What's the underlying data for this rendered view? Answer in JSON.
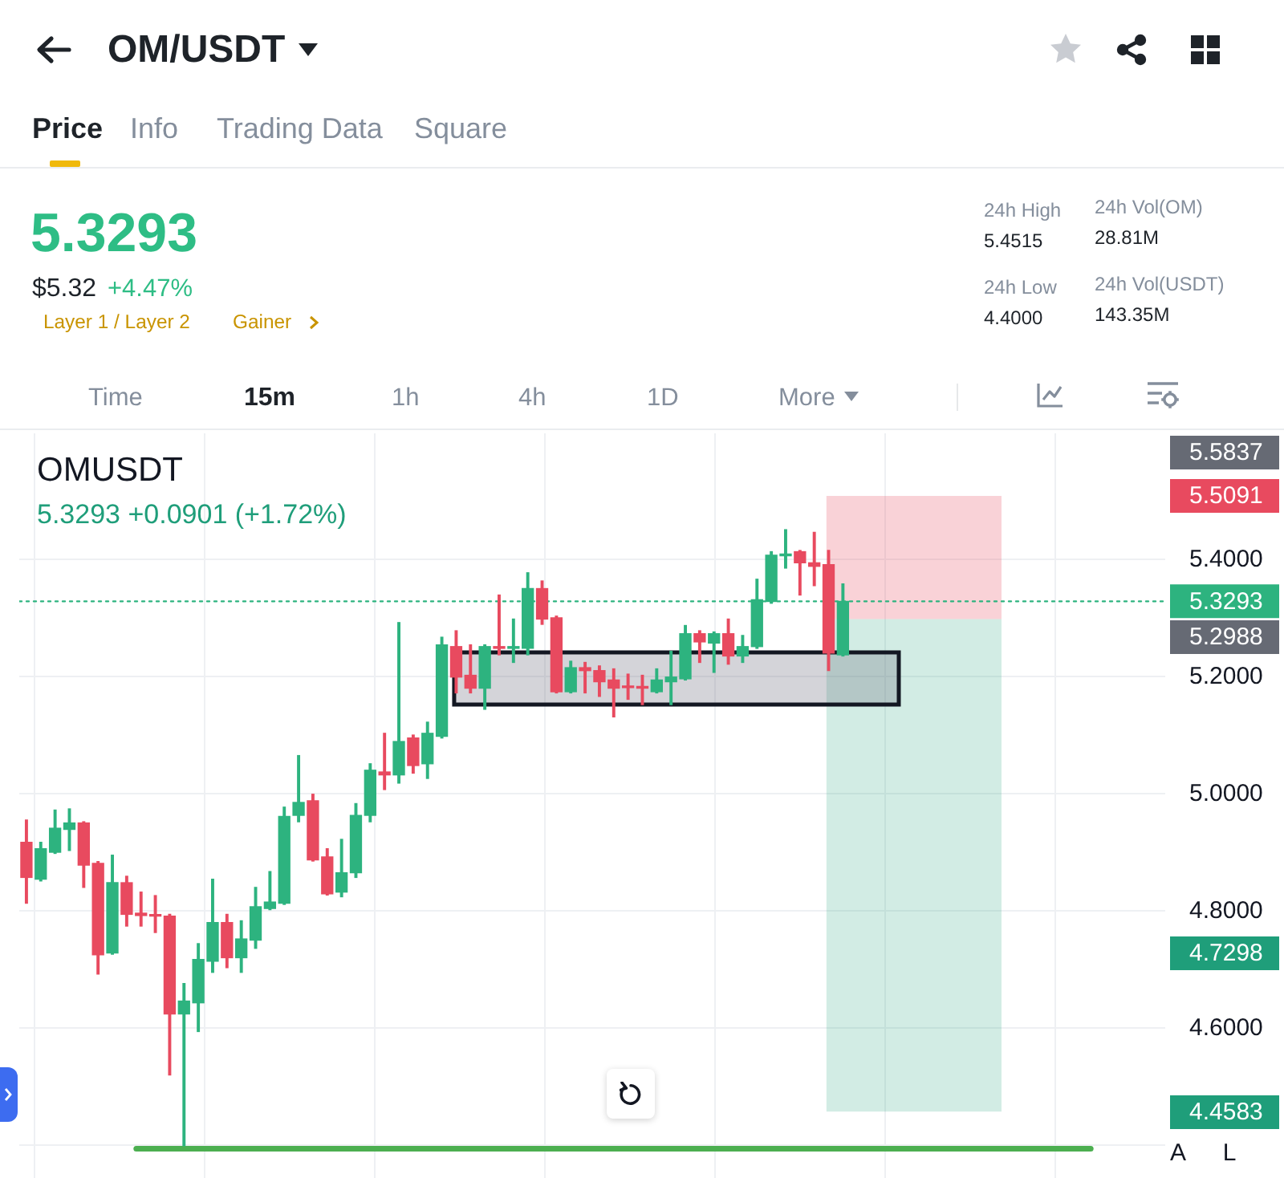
{
  "chart_data": {
    "type": "candlestick",
    "title": "OM/USDT",
    "categories": [
      null,
      null,
      null,
      null,
      null,
      null,
      null,
      null,
      null,
      null,
      null,
      null,
      null,
      null,
      null,
      null,
      null,
      null,
      null,
      null,
      null,
      null,
      null,
      null,
      null,
      null,
      null,
      null,
      null,
      null,
      null,
      null,
      null,
      null,
      null,
      null,
      null,
      null,
      null,
      null,
      null,
      null,
      null,
      null,
      null,
      null,
      null,
      null,
      null,
      null,
      null,
      null,
      null,
      null,
      null,
      null,
      null,
      null,
      null,
      null,
      null,
      null,
      null,
      null,
      null,
      null,
      null,
      null,
      null,
      null,
      null,
      null,
      null,
      null,
      null,
      null,
      null,
      null,
      null,
      null
    ],
    "ohlc": [
      [
        4.918,
        4.956,
        4.814,
        4.858
      ],
      [
        4.855,
        4.918,
        4.852,
        4.907
      ],
      [
        4.901,
        4.973,
        4.899,
        4.942
      ],
      [
        4.94,
        4.975,
        4.904,
        4.951
      ],
      [
        4.951,
        4.953,
        4.841,
        4.879
      ],
      [
        4.882,
        4.885,
        4.693,
        4.726
      ],
      [
        4.729,
        4.896,
        4.727,
        4.849
      ],
      [
        4.849,
        4.86,
        4.775,
        4.795
      ],
      [
        4.797,
        4.833,
        4.775,
        4.793
      ],
      [
        4.794,
        4.827,
        4.764,
        4.792
      ],
      [
        4.792,
        4.795,
        4.521,
        4.625
      ],
      [
        4.625,
        4.677,
        4.4,
        4.647
      ],
      [
        4.644,
        4.745,
        4.595,
        4.718
      ],
      [
        4.715,
        4.855,
        4.696,
        4.781
      ],
      [
        4.781,
        4.795,
        4.704,
        4.721
      ],
      [
        4.721,
        4.784,
        4.696,
        4.753
      ],
      [
        4.751,
        4.841,
        4.737,
        4.808
      ],
      [
        4.805,
        4.868,
        4.803,
        4.816
      ],
      [
        4.814,
        4.978,
        4.812,
        4.962
      ],
      [
        4.964,
        5.066,
        4.953,
        4.986
      ],
      [
        4.989,
        5.0,
        4.886,
        4.888
      ],
      [
        4.893,
        4.907,
        4.828,
        4.83
      ],
      [
        4.833,
        4.923,
        4.825,
        4.866
      ],
      [
        4.866,
        4.984,
        4.858,
        4.964
      ],
      [
        4.964,
        5.052,
        4.953,
        5.041
      ],
      [
        5.038,
        5.104,
        5.008,
        5.033
      ],
      [
        5.033,
        5.293,
        5.019,
        5.09
      ],
      [
        5.096,
        5.101,
        5.036,
        5.049
      ],
      [
        5.052,
        5.123,
        5.027,
        5.104
      ],
      [
        5.099,
        5.268,
        5.096,
        5.255
      ],
      [
        5.252,
        5.279,
        5.173,
        5.2
      ],
      [
        5.203,
        5.255,
        5.173,
        5.181
      ],
      [
        5.181,
        5.255,
        5.145,
        5.252
      ],
      [
        5.252,
        5.34,
        5.238,
        5.249
      ],
      [
        5.249,
        5.299,
        5.225,
        5.252
      ],
      [
        5.249,
        5.378,
        5.238,
        5.351
      ],
      [
        5.351,
        5.364,
        5.29,
        5.299
      ],
      [
        5.301,
        5.304,
        5.173,
        5.175
      ],
      [
        5.175,
        5.227,
        5.173,
        5.216
      ],
      [
        5.216,
        5.225,
        5.173,
        5.211
      ],
      [
        5.211,
        5.219,
        5.167,
        5.192
      ],
      [
        5.195,
        5.214,
        5.132,
        5.181
      ],
      [
        5.184,
        5.205,
        5.162,
        5.182
      ],
      [
        5.184,
        5.203,
        5.153,
        5.181
      ],
      [
        5.175,
        5.214,
        5.173,
        5.195
      ],
      [
        5.192,
        5.244,
        5.153,
        5.2
      ],
      [
        5.197,
        5.288,
        5.195,
        5.274
      ],
      [
        5.274,
        5.279,
        5.225,
        5.26
      ],
      [
        5.258,
        5.277,
        5.208,
        5.274
      ],
      [
        5.274,
        5.299,
        5.222,
        5.236
      ],
      [
        5.236,
        5.271,
        5.225,
        5.252
      ],
      [
        5.252,
        5.367,
        5.249,
        5.332
      ],
      [
        5.329,
        5.414,
        5.326,
        5.408
      ],
      [
        5.407,
        5.4515,
        5.386,
        5.41
      ],
      [
        5.414,
        5.416,
        5.34,
        5.395
      ],
      [
        5.395,
        5.447,
        5.356,
        5.389
      ],
      [
        5.392,
        5.416,
        5.211,
        5.241
      ],
      [
        5.238,
        5.359,
        5.236,
        5.3293
      ],
      null,
      null,
      null,
      null,
      null,
      null,
      null,
      null,
      null,
      null,
      null,
      null,
      null,
      null,
      null,
      null,
      null,
      null,
      null,
      null,
      null,
      null
    ],
    "colors": [
      "#e84a5f",
      "#2db37f",
      "#2db37f",
      "#2db37f",
      "#e84a5f",
      "#e84a5f",
      "#2db37f",
      "#e84a5f",
      "#e84a5f",
      "#e84a5f",
      "#e84a5f",
      "#2db37f",
      "#2db37f",
      "#2db37f",
      "#e84a5f",
      "#2db37f",
      "#2db37f",
      "#2db37f",
      "#2db37f",
      "#2db37f",
      "#e84a5f",
      "#e84a5f",
      "#2db37f",
      "#2db37f",
      "#2db37f",
      "#e84a5f",
      "#2db37f",
      "#e84a5f",
      "#2db37f",
      "#2db37f",
      "#e84a5f",
      "#e84a5f",
      "#2db37f",
      "#e84a5f",
      "#2db37f",
      "#2db37f",
      "#e84a5f",
      "#e84a5f",
      "#2db37f",
      "#e84a5f",
      "#e84a5f",
      "#e84a5f",
      "#e84a5f",
      "#e84a5f",
      "#2db37f",
      "#2db37f",
      "#2db37f",
      "#e84a5f",
      "#2db37f",
      "#e84a5f",
      "#2db37f",
      "#2db37f",
      "#2db37f",
      "#2db37f",
      "#e84a5f",
      "#e84a5f",
      "#e84a5f",
      "#2db37f",
      null,
      null,
      null,
      null,
      null,
      null,
      null,
      null,
      null,
      null,
      null,
      null,
      null,
      null,
      null,
      null,
      null,
      null,
      null,
      null,
      null,
      null
    ],
    "ylim": [
      4.345,
      5.616
    ],
    "yticks": [
      {
        "value": 4.4,
        "label": null
      },
      {
        "value": 4.6,
        "label": "4.6000"
      },
      {
        "value": 4.8,
        "label": "4.8000"
      },
      {
        "value": 5.0,
        "label": "5.0000"
      },
      {
        "value": 5.2,
        "label": "5.2000"
      },
      {
        "value": 5.4,
        "label": "5.4000"
      }
    ],
    "grid": true,
    "tick_labels": "y",
    "ref_lines": [
      {
        "axis": "y",
        "value": 5.3293,
        "label": "5.3293",
        "color": "#2db37f",
        "line_style": "dotted"
      },
      {
        "axis": "y",
        "value": 4.395,
        "color": "#4caf50"
      }
    ],
    "bands": [
      {
        "axis": "y",
        "from": 5.5091,
        "to": 5.2988,
        "color": "#e84a5f"
      },
      {
        "axis": "y",
        "from": 4.4583,
        "to": 5.2988,
        "color": "#1f9e7a"
      },
      {
        "axis": "y",
        "from": 5.153,
        "to": 5.242,
        "color": "#6f7280"
      }
    ],
    "annotations": [
      "Price",
      "Info",
      "Trading Data",
      "Square",
      "5.3293",
      "$5.32",
      "+4.47%",
      "Layer 1 / Layer 2",
      "Gainer",
      "24h High",
      "5.4515",
      "24h Vol(OM)",
      "28.81M",
      "24h Low",
      "4.4000",
      "24h Vol(USDT)",
      "143.35M",
      "Time",
      "15m",
      "1h",
      "4h",
      "1D",
      "More",
      "OMUSDT",
      "5.3293 +0.0901 (+1.72%)",
      "A",
      "L",
      "5.5837",
      "5.5091",
      "5.2988",
      "4.7298",
      "4.4583"
    ]
  }
}
